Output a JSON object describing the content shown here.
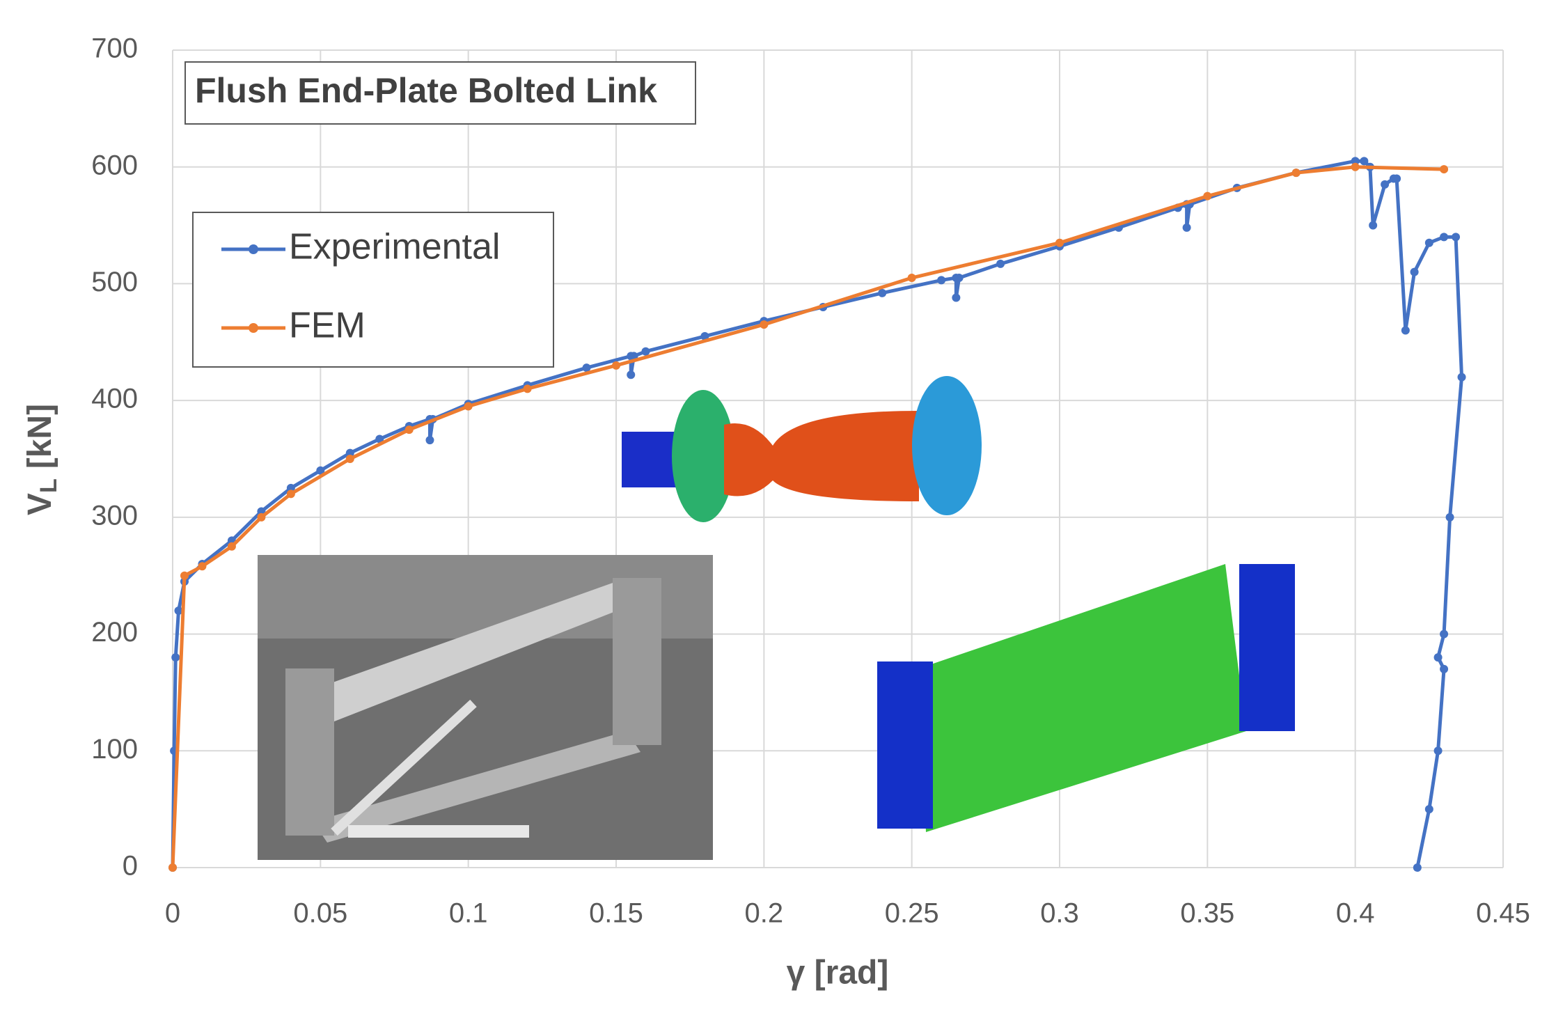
{
  "chart_data": {
    "type": "line",
    "title": "Flush End-Plate Bolted Link",
    "x_label": "γ  [rad]",
    "y_label": "V",
    "y_label_subscript": "L",
    "y_label_unit": "[kN]",
    "xlim": [
      0,
      0.45
    ],
    "ylim": [
      0,
      700
    ],
    "xticks": [
      0,
      0.05,
      0.1,
      0.15,
      0.2,
      0.25,
      0.3,
      0.35,
      0.4,
      0.45
    ],
    "yticks": [
      0,
      100,
      200,
      300,
      400,
      500,
      600,
      700
    ],
    "grid": true,
    "legend": "upper left",
    "series": [
      {
        "name": "Experimental",
        "color": "#4472c4",
        "x": [
          0,
          0.0005,
          0.001,
          0.002,
          0.004,
          0.01,
          0.02,
          0.03,
          0.04,
          0.05,
          0.06,
          0.07,
          0.08,
          0.087,
          0.087,
          0.088,
          0.1,
          0.12,
          0.14,
          0.155,
          0.155,
          0.156,
          0.16,
          0.18,
          0.2,
          0.22,
          0.24,
          0.26,
          0.265,
          0.265,
          0.266,
          0.28,
          0.3,
          0.32,
          0.34,
          0.343,
          0.343,
          0.344,
          0.36,
          0.38,
          0.4,
          0.403,
          0.405,
          0.406,
          0.41,
          0.413,
          0.414,
          0.417,
          0.42,
          0.425,
          0.43,
          0.434,
          0.436,
          0.432,
          0.43,
          0.428,
          0.43,
          0.428,
          0.425,
          0.421
        ],
        "values": [
          0,
          100,
          180,
          220,
          245,
          260,
          280,
          305,
          325,
          340,
          355,
          367,
          378,
          384,
          366,
          384,
          397,
          413,
          428,
          438,
          422,
          438,
          442,
          455,
          468,
          480,
          492,
          503,
          505,
          488,
          505,
          517,
          532,
          548,
          565,
          568,
          548,
          568,
          582,
          595,
          605,
          605,
          600,
          550,
          585,
          590,
          590,
          460,
          510,
          535,
          540,
          540,
          420,
          300,
          200,
          180,
          170,
          100,
          50,
          0
        ]
      },
      {
        "name": "FEM",
        "color": "#ed7d31",
        "x": [
          0,
          0.004,
          0.01,
          0.02,
          0.03,
          0.04,
          0.06,
          0.08,
          0.1,
          0.12,
          0.15,
          0.2,
          0.25,
          0.3,
          0.35,
          0.38,
          0.4,
          0.43
        ],
        "values": [
          0,
          250,
          258,
          275,
          300,
          320,
          350,
          375,
          395,
          410,
          430,
          465,
          505,
          535,
          575,
          595,
          600,
          598
        ]
      }
    ]
  }
}
